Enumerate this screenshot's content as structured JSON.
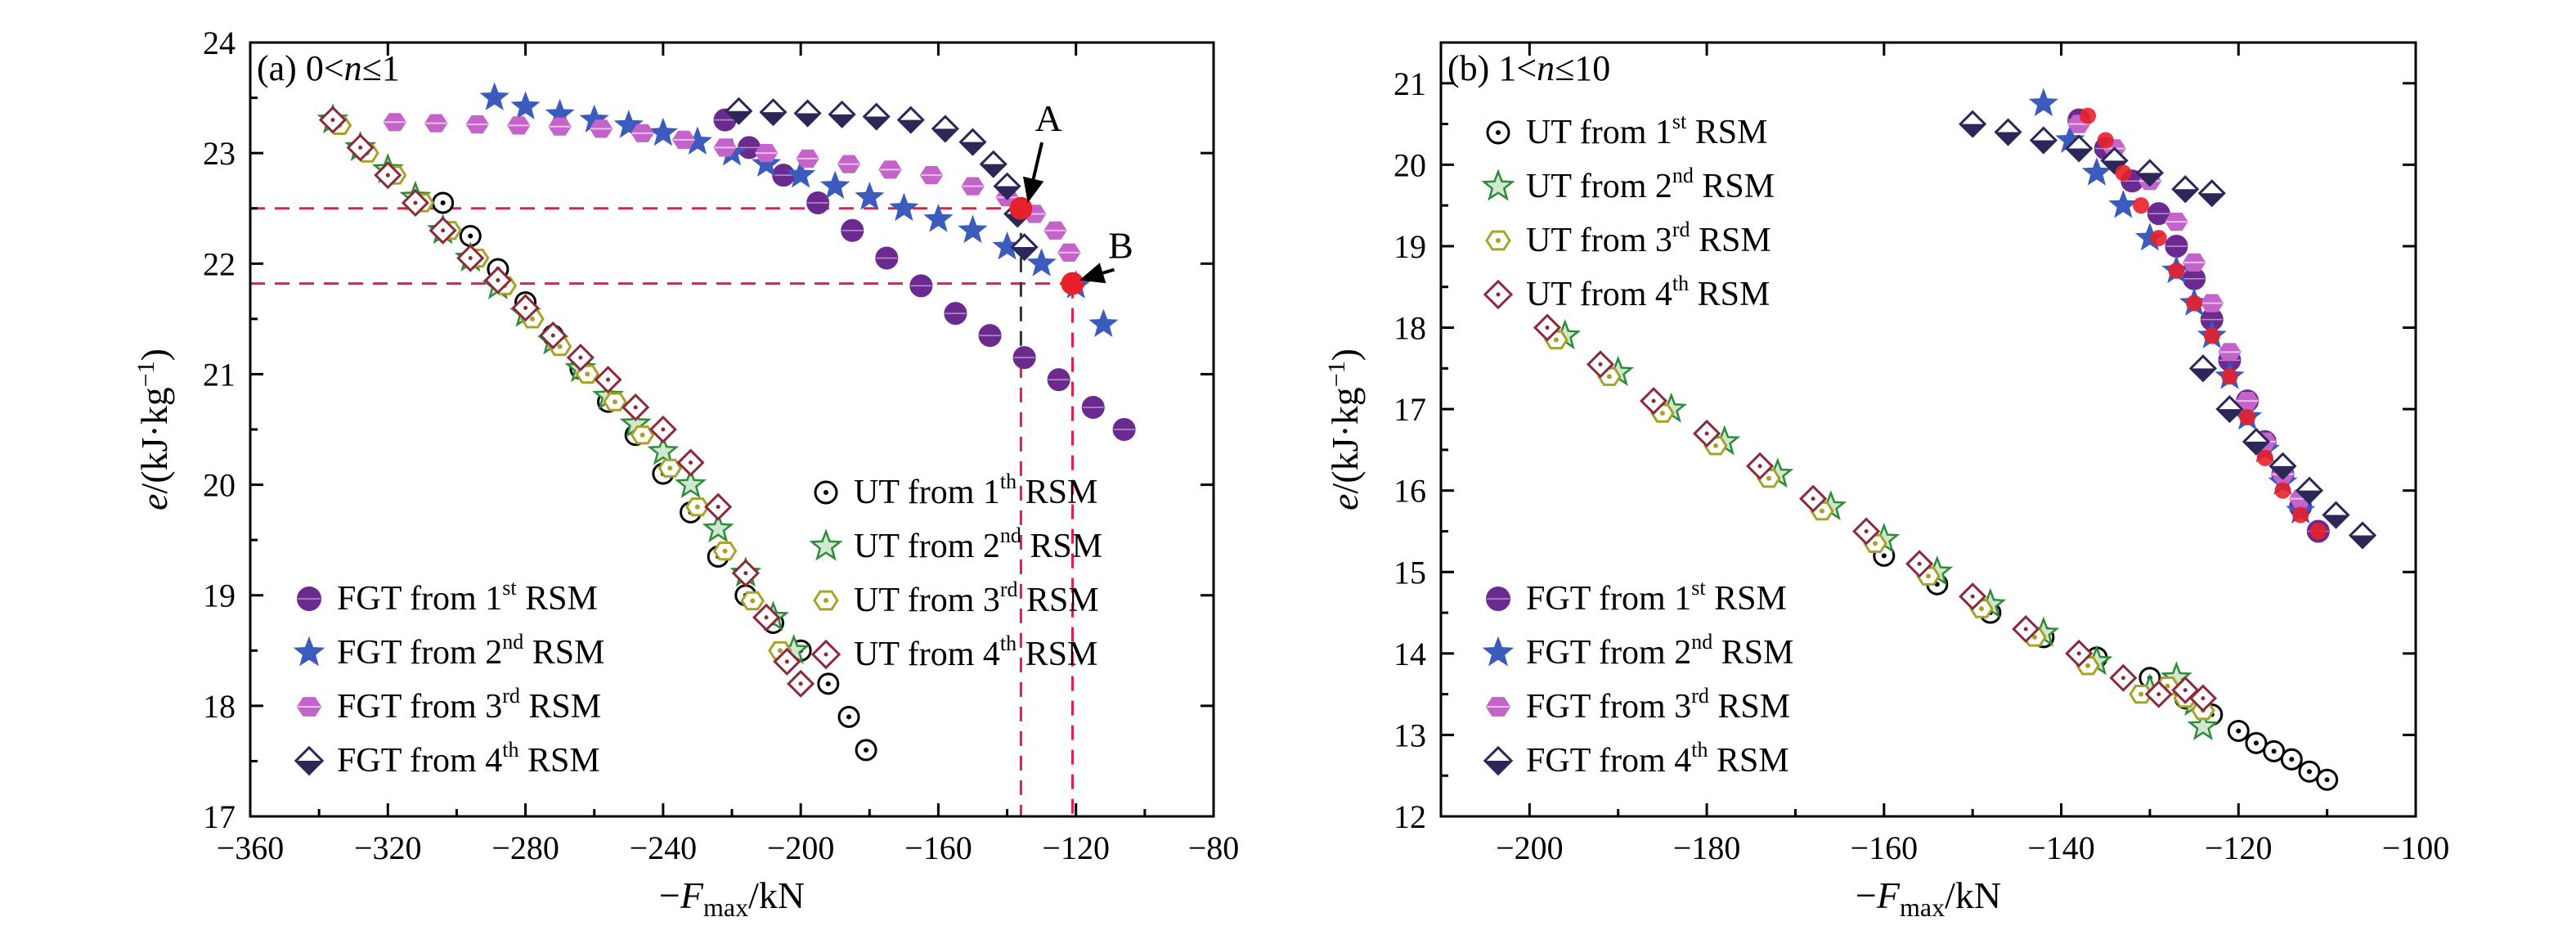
{
  "colors": {
    "fgt1": "#6a2a8f",
    "fgt2": "#3b5bbd",
    "fgt3": "#c463c9",
    "fgt4": "#2b2859",
    "ut1": "#000000",
    "ut2": "#2e8b3a",
    "ut3": "#a6a32a",
    "ut4": "#8b2a3a",
    "highlight": "#e8202a",
    "ref_red": "#e01f4c"
  },
  "chart_data": [
    {
      "type": "scatter",
      "panel_label": "(a)",
      "title_condition": "0<n≤1",
      "xlabel_prefix": "−",
      "xlabel_var": "F",
      "xlabel_sub": "max",
      "xlabel_suffix": "/kN",
      "ylabel_var": "e",
      "ylabel_unit": "/(kJ·kg",
      "ylabel_exp": "−1",
      "ylabel_close": ")",
      "xlim": [
        -360,
        -80
      ],
      "ylim": [
        17,
        24
      ],
      "xticks": [
        -360,
        -320,
        -280,
        -240,
        -200,
        -160,
        -120,
        -80
      ],
      "xtick_labels": [
        "−360",
        "−320",
        "−280",
        "−240",
        "−200",
        "−160",
        "−120",
        "−80"
      ],
      "yticks": [
        17,
        18,
        19,
        20,
        21,
        22,
        23,
        24
      ],
      "ytick_labels": [
        "17",
        "18",
        "19",
        "20",
        "21",
        "22",
        "23",
        "24"
      ],
      "series": [
        {
          "name": "FGT from 1st RSM",
          "name_base": "FGT from 1",
          "name_sup": "st",
          "name_end": "RSM",
          "group": "fgt",
          "marker": "circle-filled",
          "color_key": "fgt1",
          "x": [
            -222,
            -215,
            -205,
            -195,
            -185,
            -175,
            -165,
            -155,
            -145,
            -135,
            -125,
            -115,
            -106
          ],
          "y": [
            23.3,
            23.05,
            22.8,
            22.55,
            22.3,
            22.05,
            21.8,
            21.55,
            21.35,
            21.15,
            20.95,
            20.7,
            20.5
          ]
        },
        {
          "name": "FGT from 2nd RSM",
          "name_base": "FGT from 2",
          "name_sup": "nd",
          "name_end": "RSM",
          "group": "fgt",
          "marker": "star",
          "color_key": "fgt2",
          "x": [
            -289,
            -280,
            -270,
            -260,
            -250,
            -240,
            -230,
            -220,
            -210,
            -200,
            -190,
            -180,
            -170,
            -160,
            -150,
            -140,
            -130,
            -120,
            -112
          ],
          "y": [
            23.5,
            23.42,
            23.35,
            23.3,
            23.25,
            23.18,
            23.1,
            23.0,
            22.9,
            22.8,
            22.7,
            22.6,
            22.5,
            22.4,
            22.3,
            22.15,
            22.0,
            21.8,
            21.45
          ]
        },
        {
          "name": "FGT from 3rd RSM",
          "name_base": "FGT from 3",
          "name_sup": "rd",
          "name_end": "RSM",
          "group": "fgt",
          "marker": "hex-filled",
          "color_key": "fgt3",
          "x": [
            -318,
            -306,
            -294,
            -282,
            -270,
            -258,
            -246,
            -234,
            -222,
            -210,
            -198,
            -186,
            -174,
            -162,
            -150,
            -140,
            -132,
            -126,
            -122
          ],
          "y": [
            23.28,
            23.27,
            23.26,
            23.25,
            23.24,
            23.22,
            23.18,
            23.12,
            23.05,
            23.0,
            22.95,
            22.9,
            22.85,
            22.8,
            22.7,
            22.6,
            22.45,
            22.3,
            22.1
          ]
        },
        {
          "name": "FGT from 4th RSM",
          "name_base": "FGT from 4",
          "name_sup": "th",
          "name_end": "RSM",
          "group": "fgt",
          "marker": "diamond-half",
          "color_key": "fgt4",
          "x": [
            -218,
            -208,
            -198,
            -188,
            -178,
            -168,
            -158,
            -150,
            -144,
            -140,
            -137,
            -135
          ],
          "y": [
            23.38,
            23.37,
            23.36,
            23.35,
            23.33,
            23.3,
            23.22,
            23.1,
            22.9,
            22.7,
            22.45,
            22.15
          ]
        },
        {
          "name": "UT from 1th RSM",
          "name_base": "UT from 1",
          "name_sup": "th",
          "name_end": "RSM",
          "group": "ut",
          "marker": "circle-open",
          "color_key": "ut1",
          "x": [
            -304,
            -296,
            -288,
            -280,
            -272,
            -264,
            -256,
            -248,
            -240,
            -232,
            -224,
            -216,
            -208,
            -200,
            -192,
            -186,
            -181
          ],
          "y": [
            22.55,
            22.25,
            21.95,
            21.65,
            21.35,
            21.05,
            20.75,
            20.45,
            20.1,
            19.75,
            19.35,
            19.0,
            18.75,
            18.5,
            18.2,
            17.9,
            17.6
          ]
        },
        {
          "name": "UT from 2nd RSM",
          "name_base": "UT from 2",
          "name_sup": "nd",
          "name_end": "RSM",
          "group": "ut",
          "marker": "star-open",
          "color_key": "ut2",
          "x": [
            -336,
            -328,
            -320,
            -312,
            -304,
            -296,
            -288,
            -280,
            -272,
            -264,
            -256,
            -248,
            -240,
            -232,
            -224,
            -216,
            -208,
            -202
          ],
          "y": [
            23.3,
            23.05,
            22.85,
            22.6,
            22.3,
            22.05,
            21.8,
            21.55,
            21.3,
            21.05,
            20.8,
            20.55,
            20.3,
            20.0,
            19.6,
            19.2,
            18.8,
            18.5
          ]
        },
        {
          "name": "UT from 3rd RSM",
          "name_base": "UT from 3",
          "name_sup": "rd",
          "name_end": "RSM",
          "group": "ut",
          "marker": "hex-open",
          "color_key": "ut3",
          "x": [
            -334,
            -326,
            -318,
            -310,
            -302,
            -294,
            -286,
            -278,
            -270,
            -262,
            -254,
            -246,
            -238,
            -230,
            -222,
            -214,
            -206
          ],
          "y": [
            23.25,
            23.0,
            22.8,
            22.55,
            22.3,
            22.05,
            21.8,
            21.5,
            21.25,
            21.0,
            20.75,
            20.45,
            20.15,
            19.8,
            19.4,
            18.95,
            18.5
          ]
        },
        {
          "name": "UT from 4th RSM",
          "name_base": "UT from 4",
          "name_sup": "th",
          "name_end": "RSM",
          "group": "ut",
          "marker": "diamond-open",
          "color_key": "ut4",
          "x": [
            -336,
            -328,
            -320,
            -312,
            -304,
            -296,
            -288,
            -280,
            -272,
            -264,
            -256,
            -248,
            -240,
            -232,
            -224,
            -216,
            -210,
            -204,
            -200
          ],
          "y": [
            23.3,
            23.05,
            22.8,
            22.55,
            22.3,
            22.05,
            21.85,
            21.6,
            21.35,
            21.15,
            20.95,
            20.7,
            20.5,
            20.2,
            19.8,
            19.2,
            18.8,
            18.4,
            18.2
          ]
        }
      ],
      "highlight_points": [
        {
          "x": -136,
          "y": 22.5
        },
        {
          "x": -121,
          "y": 21.82
        }
      ],
      "annotations": [
        {
          "text": "A",
          "x": -128,
          "y": 23.2,
          "arrow_to_x": -134,
          "arrow_to_y": 22.55
        },
        {
          "text": "B",
          "x": -107,
          "y": 22.05,
          "arrow_to_x": -119,
          "arrow_to_y": 21.85
        }
      ],
      "reference_lines": [
        {
          "style": "red",
          "x1": -360,
          "y1": 22.5,
          "x2": -136,
          "y2": 22.5
        },
        {
          "style": "red",
          "x1": -360,
          "y1": 21.82,
          "x2": -121,
          "y2": 21.82
        },
        {
          "style": "red",
          "x1": -136,
          "y1": 21.1,
          "x2": -136,
          "y2": 17
        },
        {
          "style": "red",
          "x1": -121,
          "y1": 21.82,
          "x2": -121,
          "y2": 17
        },
        {
          "style": "dark",
          "x1": -136,
          "y1": 22.5,
          "x2": -136,
          "y2": 21.1
        }
      ],
      "legend_fgt_position": "bottom-left",
      "legend_ut_position": "bottom-right"
    },
    {
      "type": "scatter",
      "panel_label": "(b)",
      "title_condition": "1<n≤10",
      "xlabel_prefix": "−",
      "xlabel_var": "F",
      "xlabel_sub": "max",
      "xlabel_suffix": "/kN",
      "ylabel_var": "e",
      "ylabel_unit": "/(kJ·kg",
      "ylabel_exp": "−1",
      "ylabel_close": ")",
      "xlim": [
        -210,
        -100
      ],
      "ylim": [
        12,
        21.5
      ],
      "xticks": [
        -200,
        -180,
        -160,
        -140,
        -120,
        -100
      ],
      "xtick_labels": [
        "−200",
        "−180",
        "−160",
        "−140",
        "−120",
        "−100"
      ],
      "yticks": [
        12,
        13,
        14,
        15,
        16,
        17,
        18,
        19,
        20,
        21
      ],
      "ytick_labels": [
        "12",
        "13",
        "14",
        "15",
        "16",
        "17",
        "18",
        "19",
        "20",
        "21"
      ],
      "series": [
        {
          "name": "FGT from 1st RSM",
          "name_base": "FGT from 1",
          "name_sup": "st",
          "name_end": "RSM",
          "group": "fgt",
          "marker": "circle-filled",
          "color_key": "fgt1",
          "x": [
            -138,
            -135,
            -132,
            -129,
            -127,
            -125,
            -123,
            -121,
            -119,
            -117,
            -115,
            -113,
            -111
          ],
          "y": [
            20.55,
            20.2,
            19.8,
            19.4,
            19.0,
            18.6,
            18.1,
            17.6,
            17.1,
            16.6,
            16.2,
            15.8,
            15.5
          ]
        },
        {
          "name": "FGT from 2nd RSM",
          "name_base": "FGT from 2",
          "name_sup": "nd",
          "name_end": "RSM",
          "group": "fgt",
          "marker": "star",
          "color_key": "fgt2",
          "x": [
            -142,
            -139,
            -136,
            -133,
            -130,
            -127,
            -125,
            -123,
            -121,
            -119,
            -117,
            -115,
            -113
          ],
          "y": [
            20.75,
            20.3,
            19.9,
            19.5,
            19.1,
            18.7,
            18.3,
            17.9,
            17.4,
            16.9,
            16.5,
            16.1,
            15.75
          ]
        },
        {
          "name": "FGT from 3rd RSM",
          "name_base": "FGT from 3",
          "name_sup": "rd",
          "name_end": "RSM",
          "group": "fgt",
          "marker": "hex-filled",
          "color_key": "fgt3",
          "x": [
            -138,
            -134,
            -130,
            -127,
            -125,
            -123,
            -121,
            -119,
            -117,
            -115,
            -113
          ],
          "y": [
            20.5,
            20.2,
            19.8,
            19.3,
            18.8,
            18.3,
            17.7,
            17.1,
            16.6,
            16.2,
            15.9
          ]
        },
        {
          "name": "FGT from 4th RSM",
          "name_base": "FGT from 4",
          "name_sup": "th",
          "name_end": "RSM",
          "group": "fgt",
          "marker": "diamond-half",
          "color_key": "fgt4",
          "x": [
            -150,
            -146,
            -142,
            -138,
            -134,
            -130,
            -126,
            -123,
            -124,
            -121,
            -118,
            -115,
            -112,
            -109,
            -106
          ],
          "y": [
            20.5,
            20.4,
            20.3,
            20.2,
            20.05,
            19.9,
            19.7,
            19.65,
            17.5,
            17.0,
            16.6,
            16.3,
            16.0,
            15.7,
            15.45
          ]
        },
        {
          "name": "UT from 1st RSM",
          "name_base": "UT from 1",
          "name_sup": "st",
          "name_end": "RSM",
          "group": "ut",
          "marker": "circle-open",
          "color_key": "ut1",
          "x": [
            -160,
            -154,
            -148,
            -142,
            -136,
            -130,
            -126,
            -123,
            -120,
            -118,
            -116,
            -114,
            -112,
            -110
          ],
          "y": [
            15.2,
            14.85,
            14.5,
            14.2,
            13.95,
            13.7,
            13.45,
            13.25,
            13.05,
            12.9,
            12.8,
            12.7,
            12.55,
            12.45
          ]
        },
        {
          "name": "UT from 2nd RSM",
          "name_base": "UT from 2",
          "name_sup": "nd",
          "name_end": "RSM",
          "group": "ut",
          "marker": "star-open",
          "color_key": "ut2",
          "x": [
            -196,
            -190,
            -184,
            -178,
            -172,
            -166,
            -160,
            -154,
            -148,
            -142,
            -136,
            -130,
            -127,
            -125,
            -124
          ],
          "y": [
            17.9,
            17.45,
            17.0,
            16.6,
            16.2,
            15.8,
            15.4,
            15.0,
            14.6,
            14.25,
            13.9,
            13.55,
            13.7,
            13.4,
            13.1
          ]
        },
        {
          "name": "UT from 3rd RSM",
          "name_base": "UT from 3",
          "name_sup": "rd",
          "name_end": "RSM",
          "group": "ut",
          "marker": "hex-open",
          "color_key": "ut3",
          "x": [
            -197,
            -191,
            -185,
            -179,
            -173,
            -167,
            -161,
            -155,
            -149,
            -143,
            -137,
            -131,
            -128,
            -126,
            -124
          ],
          "y": [
            17.85,
            17.4,
            16.95,
            16.55,
            16.15,
            15.75,
            15.35,
            14.95,
            14.55,
            14.2,
            13.85,
            13.5,
            13.6,
            13.45,
            13.3
          ]
        },
        {
          "name": "UT from 4th RSM",
          "name_base": "UT from 4",
          "name_sup": "th",
          "name_end": "RSM",
          "group": "ut",
          "marker": "diamond-open",
          "color_key": "ut4",
          "x": [
            -198,
            -192,
            -186,
            -180,
            -174,
            -168,
            -162,
            -156,
            -150,
            -144,
            -138,
            -133,
            -129,
            -126,
            -124
          ],
          "y": [
            18.0,
            17.55,
            17.1,
            16.7,
            16.3,
            15.9,
            15.5,
            15.1,
            14.7,
            14.3,
            14.0,
            13.7,
            13.5,
            13.55,
            13.45
          ]
        }
      ],
      "highlight_series": [
        {
          "x": [
            -137,
            -135,
            -133,
            -131,
            -129,
            -127,
            -125,
            -123,
            -121,
            -119,
            -117,
            -115,
            -113,
            -111
          ],
          "y": [
            20.6,
            20.3,
            19.9,
            19.5,
            19.1,
            18.7,
            18.3,
            17.9,
            17.4,
            16.9,
            16.4,
            16.0,
            15.7,
            15.5
          ]
        }
      ],
      "legend_ut_position": "top-left",
      "legend_fgt_position": "bottom-left"
    }
  ]
}
